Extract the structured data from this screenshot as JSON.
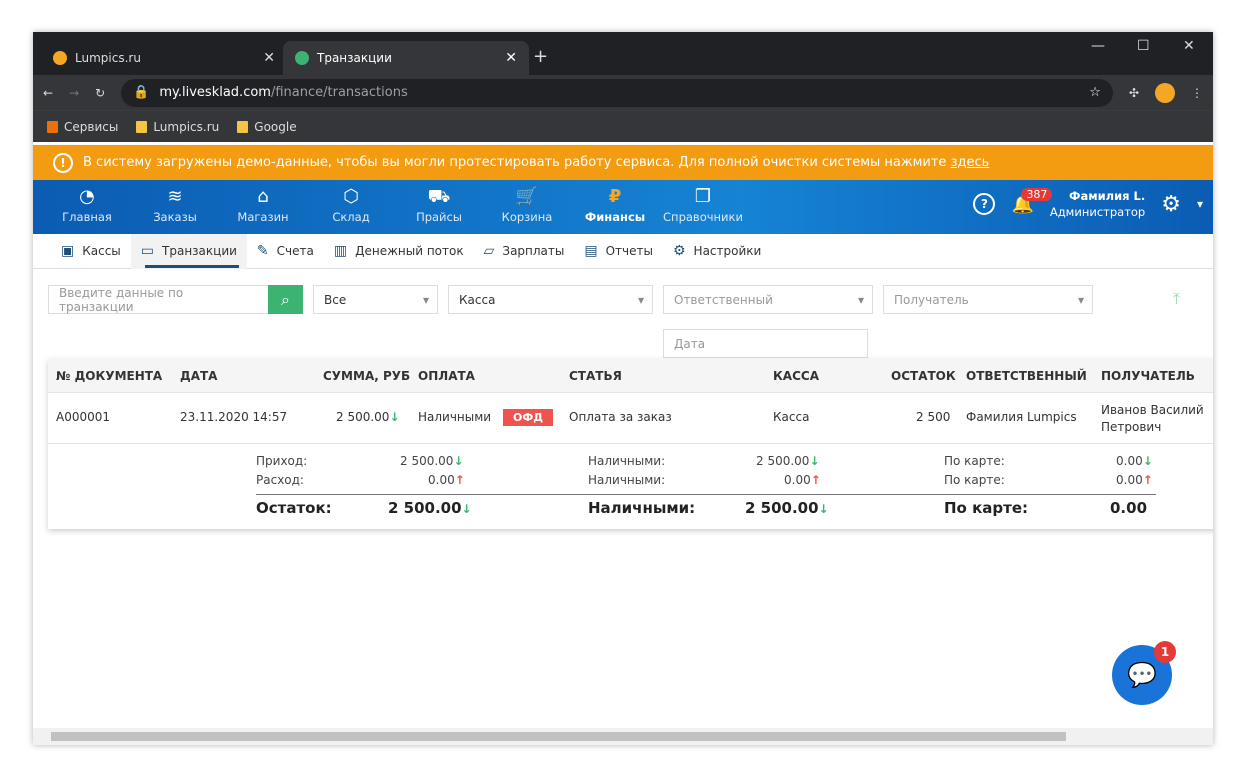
{
  "browser": {
    "tabs": [
      {
        "title": "Lumpics.ru",
        "active": false
      },
      {
        "title": "Транзакции",
        "active": true
      }
    ],
    "url_host": "my.livesklad.com",
    "url_path": "/finance/transactions",
    "bookmarks": [
      "Сервисы",
      "Lumpics.ru",
      "Google"
    ]
  },
  "banner": {
    "text": "В систему загружены демо-данные, чтобы вы могли протестировать работу сервиса. Для полной очистки системы нажмите ",
    "link": "здесь"
  },
  "nav": {
    "items": [
      {
        "label": "Главная",
        "icon": "◔"
      },
      {
        "label": "Заказы",
        "icon": "≋"
      },
      {
        "label": "Магазин",
        "icon": "⌂"
      },
      {
        "label": "Склад",
        "icon": "⬡"
      },
      {
        "label": "Прайсы",
        "icon": "⛟"
      },
      {
        "label": "Корзина",
        "icon": "🛒"
      },
      {
        "label": "Финансы",
        "icon": "₽",
        "active": true
      },
      {
        "label": "Справочники",
        "icon": "❐"
      }
    ],
    "notifications": "387",
    "user_name": "Фамилия L.",
    "user_role": "Администратор"
  },
  "subnav": [
    {
      "label": "Кассы",
      "icon": "▣"
    },
    {
      "label": "Транзакции",
      "icon": "▭",
      "active": true
    },
    {
      "label": "Счета",
      "icon": "✎"
    },
    {
      "label": "Денежный поток",
      "icon": "▥"
    },
    {
      "label": "Зарплаты",
      "icon": "▱"
    },
    {
      "label": "Отчеты",
      "icon": "▤"
    },
    {
      "label": "Настройки",
      "icon": "⚙"
    }
  ],
  "filters": {
    "search_placeholder": "Введите данные по транзакции",
    "type": "Все",
    "kassa": "Касса",
    "responsible_placeholder": "Ответственный",
    "recipient_placeholder": "Получатель",
    "date_placeholder": "Дата"
  },
  "table": {
    "columns": [
      "№ ДОКУМЕНТА",
      "ДАТА",
      "СУММА, РУБ",
      "ОПЛАТА",
      "СТАТЬЯ",
      "КАССА",
      "ОСТАТОК",
      "ОТВЕТСТВЕННЫЙ",
      "ПОЛУЧАТЕЛЬ"
    ],
    "rows": [
      {
        "doc": "A000001",
        "date": "23.11.2020 14:57",
        "sum": "2 500.00",
        "payment": "Наличными",
        "badge": "ОФД",
        "article": "Оплата за заказ",
        "kassa": "Касса",
        "balance": "2 500",
        "responsible": "Фамилия Lumpics",
        "recipient1": "Иванов Василий",
        "recipient2": "Петрович"
      }
    ]
  },
  "totals": {
    "income_label": "Приход:",
    "income": "2 500.00",
    "expense_label": "Расход:",
    "expense": "0.00",
    "cash_label": "Наличными:",
    "cash_in": "2 500.00",
    "cash_out": "0.00",
    "card_label": "По карте:",
    "card_in": "0.00",
    "card_out": "0.00",
    "balance_label": "Остаток:",
    "balance": "2 500.00",
    "cash_total_label": "Наличными:",
    "cash_total": "2 500.00",
    "card_total_label": "По карте:",
    "card_total": "0.00"
  },
  "chat": {
    "badge": "1"
  },
  "colors": {
    "accent": "#1683d3",
    "banner": "#f39c12",
    "success": "#3cb371",
    "danger": "#ef5350"
  }
}
